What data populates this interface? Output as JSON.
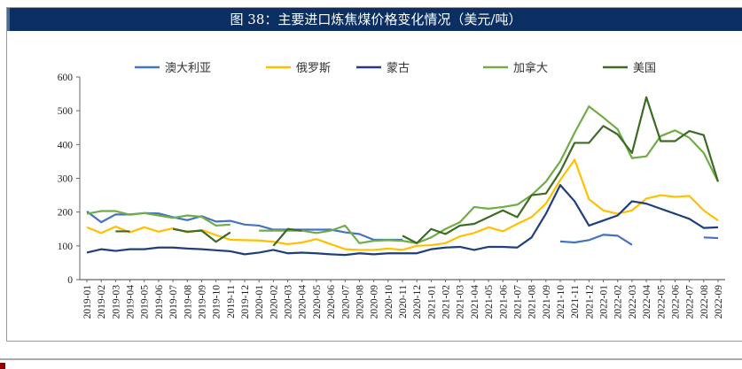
{
  "chart_data": {
    "type": "line",
    "title": "图 38：主要进口炼焦煤价格变化情况（美元/吨）",
    "xlabel": "",
    "ylabel": "",
    "ylim": [
      0,
      600
    ],
    "yticks": [
      0,
      100,
      200,
      300,
      400,
      500,
      600
    ],
    "grid": false,
    "legend": "top",
    "categories": [
      "2019-01",
      "2019-02",
      "2019-03",
      "2019-04",
      "2019-05",
      "2019-06",
      "2019-07",
      "2019-08",
      "2019-09",
      "2019-10",
      "2019-11",
      "2019-12",
      "2020-01",
      "2020-02",
      "2020-03",
      "2020-04",
      "2020-05",
      "2020-06",
      "2020-07",
      "2020-08",
      "2020-09",
      "2020-10",
      "2020-11",
      "2020-12",
      "2021-01",
      "2021-02",
      "2021-03",
      "2021-04",
      "2021-05",
      "2021-06",
      "2021-07",
      "2021-08",
      "2021-09",
      "2021-10",
      "2021-11",
      "2021-12",
      "2022-01",
      "2022-02",
      "2022-03",
      "2022-04",
      "2022-05",
      "2022-06",
      "2022-07",
      "2022-08",
      "2022-09"
    ],
    "series": [
      {
        "name": "澳大利亚",
        "color": "#4472c4",
        "values": [
          202,
          170,
          193,
          193,
          197,
          196,
          185,
          176,
          188,
          172,
          174,
          163,
          160,
          148,
          148,
          148,
          148,
          148,
          140,
          135,
          118,
          118,
          118,
          null,
          null,
          null,
          null,
          null,
          null,
          null,
          null,
          null,
          null,
          113,
          110,
          117,
          133,
          130,
          103,
          null,
          null,
          null,
          null,
          125,
          123
        ]
      },
      {
        "name": "俄罗斯",
        "color": "#ffc000",
        "values": [
          155,
          138,
          157,
          140,
          155,
          142,
          152,
          140,
          147,
          132,
          118,
          117,
          116,
          112,
          105,
          110,
          120,
          105,
          90,
          88,
          88,
          92,
          88,
          100,
          102,
          108,
          128,
          138,
          155,
          143,
          165,
          185,
          225,
          295,
          355,
          238,
          205,
          195,
          205,
          240,
          250,
          245,
          248,
          205,
          175
        ]
      },
      {
        "name": "蒙古",
        "color": "#203f7a",
        "values": [
          80,
          90,
          85,
          90,
          90,
          95,
          95,
          92,
          90,
          87,
          84,
          75,
          80,
          88,
          78,
          80,
          78,
          75,
          73,
          78,
          75,
          78,
          78,
          78,
          90,
          95,
          97,
          88,
          97,
          97,
          95,
          125,
          195,
          280,
          232,
          160,
          175,
          190,
          232,
          225,
          210,
          195,
          180,
          153,
          155
        ]
      },
      {
        "name": "加拿大",
        "color": "#70ad47",
        "values": [
          195,
          203,
          203,
          192,
          197,
          190,
          183,
          190,
          186,
          160,
          163,
          null,
          145,
          145,
          145,
          145,
          138,
          145,
          160,
          108,
          115,
          117,
          115,
          108,
          125,
          150,
          170,
          215,
          210,
          215,
          222,
          250,
          290,
          350,
          435,
          513,
          480,
          445,
          360,
          365,
          425,
          442,
          420,
          375,
          290
        ]
      },
      {
        "name": "美国",
        "color": "#3d6b25",
        "values": [
          null,
          null,
          143,
          143,
          null,
          null,
          150,
          142,
          145,
          112,
          140,
          null,
          null,
          100,
          150,
          145,
          null,
          null,
          null,
          null,
          null,
          null,
          130,
          108,
          150,
          135,
          160,
          165,
          185,
          205,
          185,
          250,
          255,
          320,
          405,
          405,
          455,
          430,
          375,
          540,
          410,
          410,
          440,
          428,
          290
        ]
      }
    ]
  }
}
